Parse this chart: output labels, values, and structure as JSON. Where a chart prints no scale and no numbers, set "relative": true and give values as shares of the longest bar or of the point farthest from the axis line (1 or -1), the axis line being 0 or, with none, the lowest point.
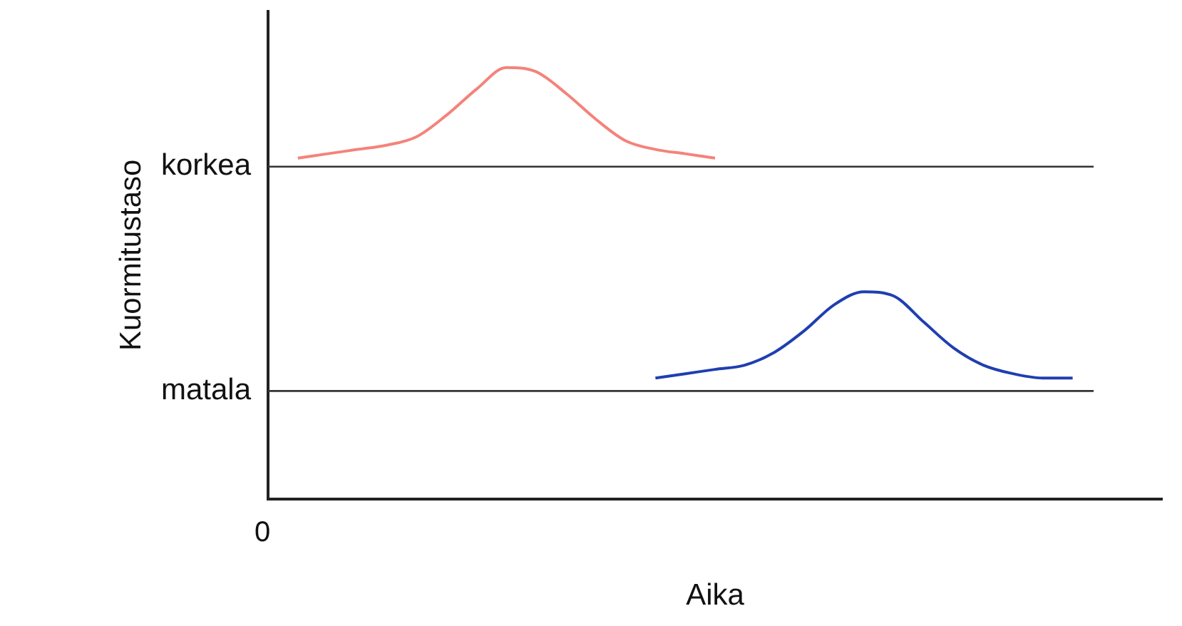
{
  "chart_data": {
    "type": "line",
    "relative": true,
    "xlabel": "Aika",
    "ylabel": "Kuormitustaso",
    "grid": false,
    "legend": false,
    "marker": "none",
    "annotations": [
      "0"
    ],
    "categories": [
      null,
      null,
      null,
      null,
      null,
      null,
      null,
      null,
      null,
      null,
      null,
      null,
      null,
      null,
      null,
      null,
      null,
      null,
      null,
      null,
      null,
      null,
      null,
      null,
      null,
      null,
      null,
      null,
      null,
      null,
      null
    ],
    "series": [
      {
        "color": "#f4837b",
        "values": [
          null,
          0.79,
          0.8,
          0.81,
          0.82,
          0.84,
          0.89,
          0.95,
          1.0,
          0.99,
          0.94,
          0.88,
          0.83,
          0.81,
          0.8,
          0.79,
          null,
          null,
          null,
          null,
          null,
          null,
          null,
          null,
          null,
          null,
          null,
          null,
          null,
          null,
          null
        ]
      },
      {
        "color": "#1f3fb0",
        "values": [
          null,
          null,
          null,
          null,
          null,
          null,
          null,
          null,
          null,
          null,
          null,
          null,
          null,
          0.28,
          0.29,
          0.3,
          0.31,
          0.34,
          0.39,
          0.45,
          0.48,
          0.47,
          0.41,
          0.35,
          0.31,
          0.29,
          0.28,
          0.28,
          null,
          null,
          null
        ]
      }
    ],
    "ref_lines": [
      {
        "axis": "y",
        "value": 0.77,
        "label": "korkea",
        "color": "#333333"
      },
      {
        "axis": "y",
        "value": 0.25,
        "label": "matala",
        "color": "#333333"
      }
    ]
  }
}
